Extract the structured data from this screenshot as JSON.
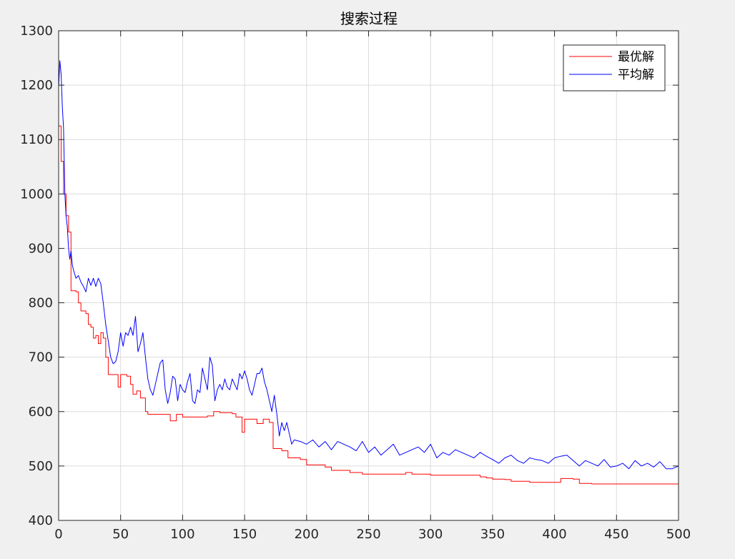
{
  "chart_data": {
    "type": "line",
    "title": "搜索过程",
    "xlabel": "",
    "ylabel": "",
    "xlim": [
      0,
      500
    ],
    "ylim": [
      400,
      1300
    ],
    "xticks": [
      0,
      50,
      100,
      150,
      200,
      250,
      300,
      350,
      400,
      450,
      500
    ],
    "yticks": [
      400,
      500,
      600,
      700,
      800,
      900,
      1000,
      1100,
      1200,
      1300
    ],
    "grid": true,
    "legend_position": "top-right",
    "series": [
      {
        "name": "最优解",
        "color": "#ff0000",
        "step": true,
        "x": [
          0,
          2,
          4,
          6,
          8,
          10,
          12,
          14,
          16,
          18,
          20,
          22,
          24,
          26,
          28,
          30,
          32,
          34,
          36,
          38,
          40,
          45,
          48,
          50,
          55,
          58,
          60,
          63,
          66,
          70,
          72,
          80,
          88,
          90,
          95,
          100,
          110,
          120,
          125,
          130,
          140,
          143,
          148,
          150,
          155,
          160,
          165,
          170,
          173,
          180,
          185,
          190,
          195,
          200,
          210,
          215,
          220,
          230,
          235,
          240,
          245,
          250,
          270,
          280,
          285,
          300,
          330,
          340,
          345,
          350,
          360,
          365,
          370,
          380,
          390,
          400,
          405,
          415,
          420,
          430,
          440,
          460,
          500
        ],
        "y": [
          1125,
          1060,
          1000,
          960,
          930,
          822,
          822,
          820,
          800,
          785,
          785,
          780,
          760,
          755,
          735,
          740,
          725,
          745,
          735,
          700,
          668,
          668,
          645,
          668,
          665,
          650,
          632,
          638,
          625,
          600,
          595,
          595,
          595,
          583,
          595,
          590,
          590,
          592,
          600,
          598,
          596,
          590,
          562,
          586,
          586,
          578,
          586,
          580,
          532,
          528,
          515,
          515,
          512,
          502,
          502,
          498,
          492,
          492,
          488,
          488,
          485,
          485,
          485,
          488,
          485,
          483,
          483,
          480,
          478,
          476,
          475,
          472,
          472,
          470,
          470,
          470,
          477,
          476,
          468,
          467,
          467,
          467,
          467
        ]
      },
      {
        "name": "平均解",
        "color": "#0000ff",
        "step": false,
        "x": [
          0,
          1,
          2,
          3,
          4,
          5,
          6,
          7,
          8,
          9,
          10,
          11,
          12,
          14,
          16,
          18,
          20,
          22,
          24,
          26,
          28,
          30,
          32,
          34,
          36,
          38,
          40,
          42,
          44,
          46,
          48,
          50,
          52,
          54,
          56,
          58,
          60,
          62,
          64,
          66,
          68,
          70,
          72,
          74,
          76,
          78,
          80,
          82,
          84,
          86,
          88,
          90,
          92,
          94,
          96,
          98,
          100,
          102,
          104,
          106,
          108,
          110,
          112,
          114,
          116,
          118,
          120,
          122,
          124,
          126,
          128,
          130,
          132,
          134,
          136,
          138,
          140,
          142,
          144,
          146,
          148,
          150,
          152,
          154,
          156,
          158,
          160,
          162,
          164,
          166,
          168,
          170,
          172,
          174,
          176,
          178,
          180,
          182,
          184,
          186,
          188,
          190,
          195,
          200,
          205,
          210,
          215,
          220,
          225,
          230,
          235,
          240,
          245,
          250,
          255,
          260,
          265,
          270,
          275,
          280,
          285,
          290,
          295,
          300,
          305,
          310,
          315,
          320,
          325,
          330,
          335,
          340,
          345,
          350,
          355,
          360,
          365,
          370,
          375,
          380,
          385,
          390,
          395,
          400,
          405,
          410,
          415,
          420,
          425,
          430,
          435,
          440,
          445,
          450,
          455,
          460,
          465,
          470,
          475,
          480,
          485,
          490,
          495,
          500
        ],
        "y": [
          1195,
          1245,
          1220,
          1160,
          1120,
          1000,
          960,
          940,
          900,
          880,
          895,
          870,
          860,
          845,
          850,
          838,
          830,
          820,
          845,
          832,
          845,
          830,
          845,
          835,
          800,
          760,
          730,
          700,
          688,
          692,
          710,
          745,
          720,
          745,
          740,
          755,
          740,
          775,
          710,
          725,
          745,
          700,
          660,
          640,
          630,
          650,
          670,
          690,
          695,
          640,
          615,
          635,
          665,
          660,
          620,
          650,
          640,
          635,
          655,
          670,
          620,
          615,
          640,
          635,
          680,
          660,
          640,
          700,
          685,
          620,
          640,
          650,
          640,
          660,
          645,
          640,
          660,
          650,
          640,
          670,
          660,
          675,
          660,
          640,
          630,
          650,
          670,
          670,
          680,
          655,
          640,
          620,
          600,
          630,
          595,
          555,
          580,
          565,
          580,
          560,
          540,
          548,
          545,
          540,
          548,
          535,
          545,
          530,
          545,
          540,
          535,
          528,
          545,
          525,
          535,
          520,
          530,
          540,
          520,
          525,
          530,
          535,
          525,
          540,
          515,
          525,
          520,
          530,
          525,
          520,
          515,
          525,
          518,
          512,
          505,
          515,
          520,
          510,
          505,
          515,
          512,
          510,
          505,
          515,
          518,
          520,
          510,
          500,
          510,
          505,
          500,
          512,
          498,
          500,
          505,
          495,
          510,
          500,
          505,
          498,
          508,
          495,
          495,
          500
        ]
      }
    ]
  }
}
